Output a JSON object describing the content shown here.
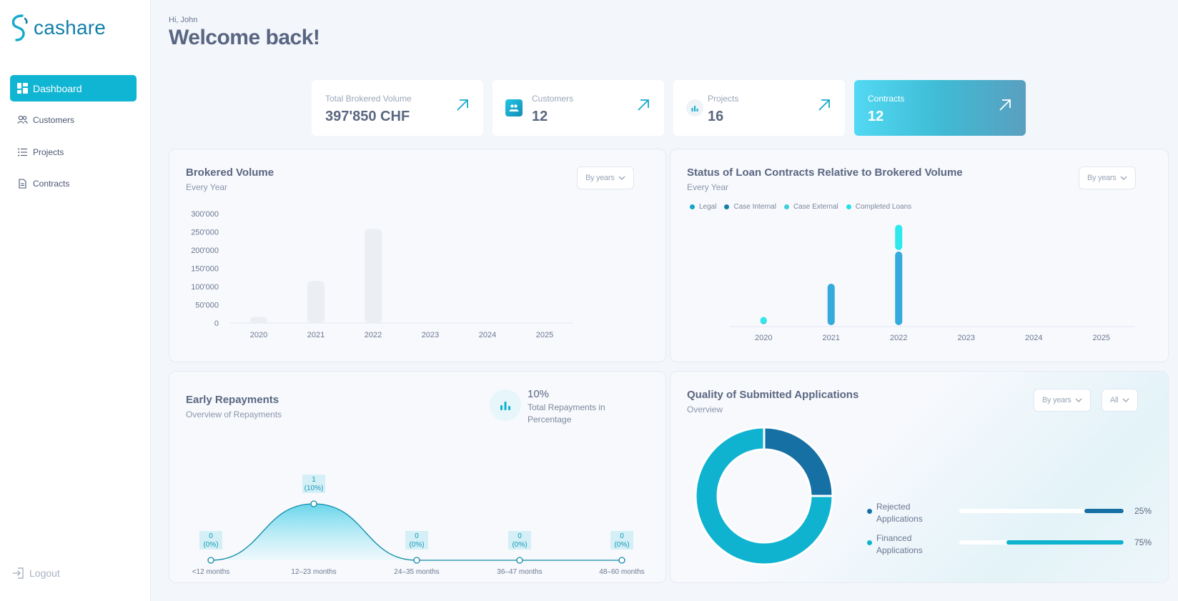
{
  "app": {
    "name": "cashare"
  },
  "sidebar": {
    "items": [
      {
        "label": "Dashboard",
        "icon": "dashboard-icon",
        "active": true
      },
      {
        "label": "Customers",
        "icon": "users-icon"
      },
      {
        "label": "Projects",
        "icon": "list-icon"
      },
      {
        "label": "Contracts",
        "icon": "document-icon"
      }
    ],
    "logout": "Logout"
  },
  "header": {
    "greeting": "Hi, John",
    "title": "Welcome back!"
  },
  "kpis": [
    {
      "label": "Total Brokered Volume",
      "value": "397'850 CHF"
    },
    {
      "label": "Customers",
      "value": "12",
      "icon": "users-badge-icon"
    },
    {
      "label": "Projects",
      "value": "16",
      "icon": "bar-chart-icon"
    },
    {
      "label": "Contracts",
      "value": "12",
      "highlight": true
    }
  ],
  "brokered": {
    "title": "Brokered Volume",
    "subtitle": "Every Year",
    "filter": "By years"
  },
  "status": {
    "title": "Status of Loan Contracts Relative to Brokered Volume",
    "subtitle": "Every Year",
    "filter": "By years",
    "legend": [
      {
        "label": "Legal",
        "color": "#13a5c7"
      },
      {
        "label": "Case Internal",
        "color": "#137fa8"
      },
      {
        "label": "Case External",
        "color": "#3fcfd9"
      },
      {
        "label": "Completed Loans",
        "color": "#22e0e6"
      }
    ]
  },
  "repayments": {
    "title": "Early Repayments",
    "subtitle": "Overview of Repayments",
    "total_value": "10%",
    "total_label": "Total Repayments in Percentage"
  },
  "quality": {
    "title": "Quality of Submitted Applications",
    "subtitle": "Overview",
    "filter_period": "By years",
    "filter_scope": "All",
    "items": [
      {
        "label": "Rejected Applications",
        "percent": "25%",
        "value": 25,
        "color": "#1670a4"
      },
      {
        "label": "Financed Applications",
        "percent": "75%",
        "value": 75,
        "color": "#0fb3d0"
      }
    ]
  },
  "chart_data": [
    {
      "type": "bar",
      "title": "Brokered Volume",
      "categories": [
        "2020",
        "2021",
        "2022",
        "2023",
        "2024",
        "2025"
      ],
      "values": [
        17000,
        115000,
        258000,
        0,
        0,
        0
      ],
      "ylim": [
        0,
        300000
      ],
      "yticks": [
        "0",
        "50'000",
        "100'000",
        "150'000",
        "200'000",
        "250'000",
        "300'000"
      ],
      "color": "#ebeef3"
    },
    {
      "type": "bar",
      "title": "Status of Loan Contracts Relative to Brokered Volume",
      "categories": [
        "2020",
        "2021",
        "2022",
        "2023",
        "2024",
        "2025"
      ],
      "series": [
        {
          "name": "Legal",
          "values": [
            1,
            4,
            7,
            0,
            0,
            0
          ],
          "color": "#35aadc"
        },
        {
          "name": "Completed Loans",
          "values": [
            1,
            0,
            2.5,
            0,
            0,
            0
          ],
          "color": "#2ee8ec"
        }
      ],
      "ylim": [
        0,
        10
      ]
    },
    {
      "type": "area",
      "title": "Early Repayments",
      "categories": [
        "<12 months",
        "12–23 months",
        "24–35 months",
        "36–47 months",
        "48–60 months"
      ],
      "values": [
        0,
        1,
        0,
        0,
        0
      ],
      "labels": [
        "0\n(0%)",
        "1\n(10%)",
        "0\n(0%)",
        "0\n(0%)",
        "0\n(0%)"
      ]
    },
    {
      "type": "pie",
      "title": "Quality of Submitted Applications",
      "slices": [
        {
          "label": "Rejected Applications",
          "value": 25,
          "color": "#1670a4"
        },
        {
          "label": "Financed Applications",
          "value": 75,
          "color": "#0fb3d0"
        }
      ]
    }
  ]
}
